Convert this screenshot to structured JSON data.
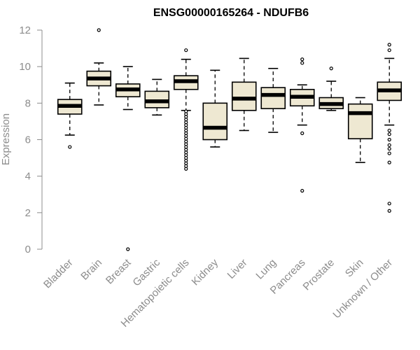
{
  "colors": {
    "box_fill": "#eee8d2",
    "box_stroke": "#000000",
    "median": "#000000",
    "axis": "#8c8c8c",
    "label": "#8c8c8c",
    "title": "#000000"
  },
  "chart_data": {
    "type": "boxplot",
    "title": "ENSG00000165264 - NDUFB6",
    "xlabel": "",
    "ylabel": "Expression",
    "ylim": [
      0,
      12
    ],
    "yticks": [
      0,
      2,
      4,
      6,
      8,
      10,
      12
    ],
    "ytick_labels": [
      "0",
      "2",
      "4",
      "6",
      "8",
      "10",
      "12"
    ],
    "grid": false,
    "categories": [
      "Bladder",
      "Brain",
      "Breast",
      "Gastric",
      "Hematopoietic cells",
      "Kidney",
      "Liver",
      "Lung",
      "Pancreas",
      "Prostate",
      "Skin",
      "Unknown / Other"
    ],
    "boxes": [
      {
        "category": "Bladder",
        "whisker_low": 6.25,
        "q1": 7.4,
        "median": 7.85,
        "q3": 8.2,
        "whisker_high": 9.1,
        "outliers": [
          5.6
        ]
      },
      {
        "category": "Brain",
        "whisker_low": 7.9,
        "q1": 8.95,
        "median": 9.35,
        "q3": 9.75,
        "whisker_high": 10.2,
        "outliers": [
          12.0
        ]
      },
      {
        "category": "Breast",
        "whisker_low": 7.65,
        "q1": 8.35,
        "median": 8.75,
        "q3": 9.05,
        "whisker_high": 10.0,
        "outliers": [
          0.0
        ]
      },
      {
        "category": "Gastric",
        "whisker_low": 7.35,
        "q1": 7.75,
        "median": 8.1,
        "q3": 8.65,
        "whisker_high": 9.3,
        "outliers": []
      },
      {
        "category": "Hematopoietic cells",
        "whisker_low": 7.6,
        "q1": 8.75,
        "median": 9.2,
        "q3": 9.5,
        "whisker_high": 10.4,
        "outliers": [
          10.9,
          7.55,
          7.4,
          7.25,
          7.1,
          6.95,
          6.8,
          6.65,
          6.5,
          6.35,
          6.2,
          6.05,
          5.9,
          5.75,
          5.6,
          5.45,
          5.3,
          5.15,
          5.0,
          4.85,
          4.7,
          4.55,
          4.4
        ]
      },
      {
        "category": "Kidney",
        "whisker_low": 5.6,
        "q1": 6.0,
        "median": 6.65,
        "q3": 8.0,
        "whisker_high": 9.8,
        "outliers": []
      },
      {
        "category": "Liver",
        "whisker_low": 6.5,
        "q1": 7.6,
        "median": 8.25,
        "q3": 9.15,
        "whisker_high": 10.45,
        "outliers": []
      },
      {
        "category": "Lung",
        "whisker_low": 6.4,
        "q1": 7.7,
        "median": 8.45,
        "q3": 8.85,
        "whisker_high": 9.9,
        "outliers": []
      },
      {
        "category": "Pancreas",
        "whisker_low": 6.8,
        "q1": 7.85,
        "median": 8.35,
        "q3": 8.75,
        "whisker_high": 9.0,
        "outliers": [
          10.4,
          10.2,
          6.35,
          3.2
        ]
      },
      {
        "category": "Prostate",
        "whisker_low": 7.6,
        "q1": 7.7,
        "median": 7.95,
        "q3": 8.3,
        "whisker_high": 9.2,
        "outliers": [
          9.9
        ]
      },
      {
        "category": "Skin",
        "whisker_low": 4.75,
        "q1": 6.05,
        "median": 7.45,
        "q3": 7.95,
        "whisker_high": 8.3,
        "outliers": []
      },
      {
        "category": "Unknown / Other",
        "whisker_low": 6.8,
        "q1": 8.15,
        "median": 8.7,
        "q3": 9.15,
        "whisker_high": 10.45,
        "outliers": [
          11.2,
          10.9,
          6.5,
          6.3,
          6.0,
          5.7,
          5.5,
          5.25,
          4.75,
          2.5,
          2.1
        ]
      }
    ]
  }
}
